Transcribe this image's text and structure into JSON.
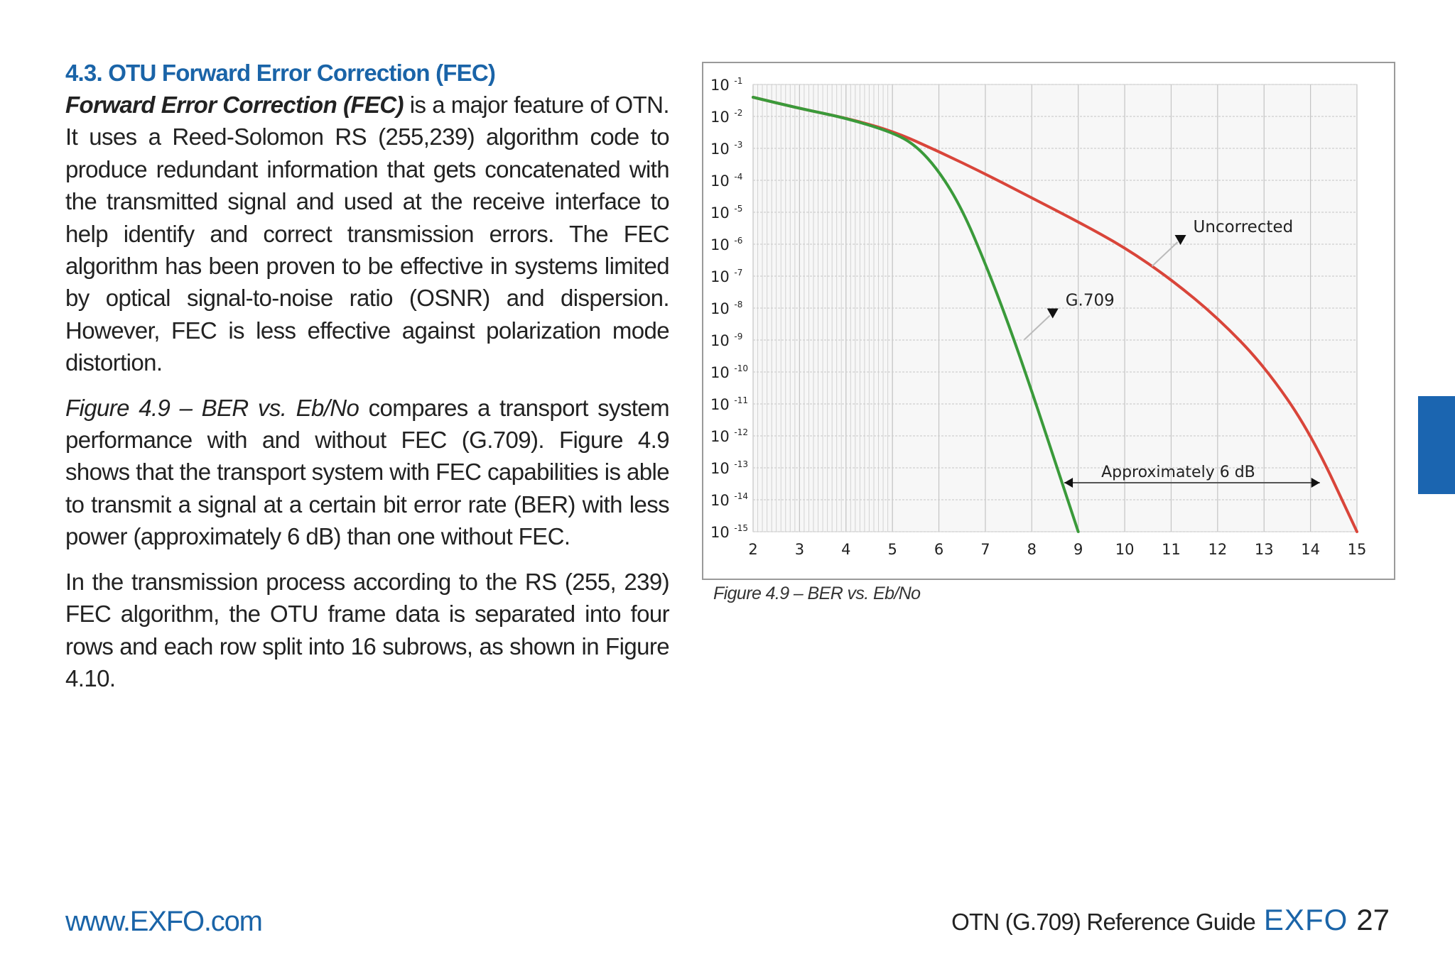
{
  "section": {
    "title": "4.3. OTU Forward Error Correction (FEC)"
  },
  "paragraphs": {
    "p1_bold": "Forward Error Correction (FEC)",
    "p1_rest": " is a major feature of OTN. It uses a Reed-Solomon RS (255,239) algorithm code to produce redundant information that gets concatenated with the transmitted signal and used at the receive interface to help identify and correct transmission errors. The FEC algorithm has been proven to be effective in systems limited by optical signal-to-noise ratio (OSNR) and dispersion. However, FEC is less effective against polarization mode distortion.",
    "p2_italic": "Figure 4.9 – BER vs. Eb/No",
    "p2_rest": " compares a transport system performance with and without FEC (G.709). Figure 4.9 shows that the transport system with FEC capabilities is able to transmit a signal at a certain bit error rate (BER) with less power (approximately 6 dB) than one without FEC.",
    "p3": "In the transmission process according to the RS (255, 239) FEC algorithm, the OTU frame data is separated into four rows and each row split into 16 subrows, as shown in Figure 4.10."
  },
  "figure": {
    "caption": "Figure 4.9 – BER vs. Eb/No"
  },
  "chart_data": {
    "type": "line",
    "title": "",
    "xlabel": "",
    "ylabel": "",
    "x_ticks": [
      "2",
      "3",
      "4",
      "5",
      "6",
      "7",
      "8",
      "9",
      "10",
      "11",
      "12",
      "13",
      "14",
      "15"
    ],
    "xlim": [
      2,
      15
    ],
    "y_ticks": [
      {
        "base": "10",
        "exp": "-1"
      },
      {
        "base": "10",
        "exp": "-2"
      },
      {
        "base": "10",
        "exp": "-3"
      },
      {
        "base": "10",
        "exp": "-4"
      },
      {
        "base": "10",
        "exp": "-5"
      },
      {
        "base": "10",
        "exp": "-6"
      },
      {
        "base": "10",
        "exp": "-7"
      },
      {
        "base": "10",
        "exp": "-8"
      },
      {
        "base": "10",
        "exp": "-9"
      },
      {
        "base": "10",
        "exp": "-10"
      },
      {
        "base": "10",
        "exp": "-11"
      },
      {
        "base": "10",
        "exp": "-12"
      },
      {
        "base": "10",
        "exp": "-13"
      },
      {
        "base": "10",
        "exp": "-14"
      },
      {
        "base": "10",
        "exp": "-15"
      }
    ],
    "ylim_log10": [
      -15,
      -1
    ],
    "series": [
      {
        "name": "Uncorrected",
        "color": "#d9453a",
        "x": [
          2,
          3,
          4,
          5,
          6,
          7,
          8,
          9,
          10,
          11,
          12,
          13,
          14,
          15
        ],
        "log10_y": [
          -1.4,
          -1.75,
          -2.05,
          -2.45,
          -3.1,
          -3.8,
          -4.55,
          -5.3,
          -6.1,
          -7.1,
          -8.3,
          -9.8,
          -11.9,
          -15
        ]
      },
      {
        "name": "G.709",
        "color": "#3a9a3a",
        "x": [
          2,
          3,
          4,
          5,
          5.5,
          6,
          6.5,
          7,
          7.5,
          8,
          8.5,
          9
        ],
        "log10_y": [
          -1.4,
          -1.75,
          -2.05,
          -2.5,
          -2.9,
          -3.7,
          -4.9,
          -6.6,
          -8.5,
          -10.6,
          -12.8,
          -15
        ]
      }
    ],
    "annotations": [
      {
        "text": "Uncorrected",
        "x": 11.2,
        "log10_y": -5.8
      },
      {
        "text": "G.709",
        "x": 8.45,
        "log10_y": -8.1
      },
      {
        "text": "Approximately 6 dB",
        "x": 8.7,
        "x_end": 14.2,
        "log10_y": -13.2
      }
    ],
    "grid": true
  },
  "footer": {
    "url": "www.EXFO.com",
    "guide": "OTN (G.709) Reference Guide",
    "brand": "EXFO",
    "page": "27"
  }
}
